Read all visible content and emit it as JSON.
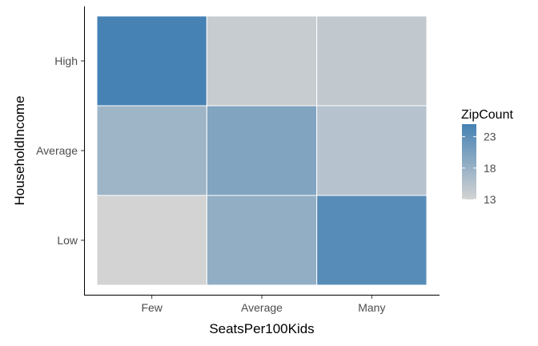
{
  "chart_data": {
    "type": "heatmap",
    "x_categories": [
      "Few",
      "Average",
      "Many"
    ],
    "y_categories": [
      "Low",
      "Average",
      "High"
    ],
    "xlabel": "SeatsPer100Kids",
    "ylabel": "HouseholdIncome",
    "cells": [
      {
        "x": "Few",
        "y": "High",
        "value": 25
      },
      {
        "x": "Average",
        "y": "High",
        "value": 14
      },
      {
        "x": "Many",
        "y": "High",
        "value": 14.5
      },
      {
        "x": "Few",
        "y": "Average",
        "value": 17.5
      },
      {
        "x": "Average",
        "y": "Average",
        "value": 20
      },
      {
        "x": "Many",
        "y": "Average",
        "value": 15.5
      },
      {
        "x": "Few",
        "y": "Low",
        "value": 13
      },
      {
        "x": "Average",
        "y": "Low",
        "value": 18.5
      },
      {
        "x": "Many",
        "y": "Low",
        "value": 23.5
      }
    ],
    "legend": {
      "title": "ZipCount",
      "ticks": [
        23,
        18,
        13
      ],
      "tick_labels": [
        "23",
        "18",
        "13"
      ],
      "range": [
        13,
        25
      ],
      "low_color": "#d3d3d3",
      "high_color": "#4682b4",
      "placement": "right"
    },
    "grid": false
  }
}
